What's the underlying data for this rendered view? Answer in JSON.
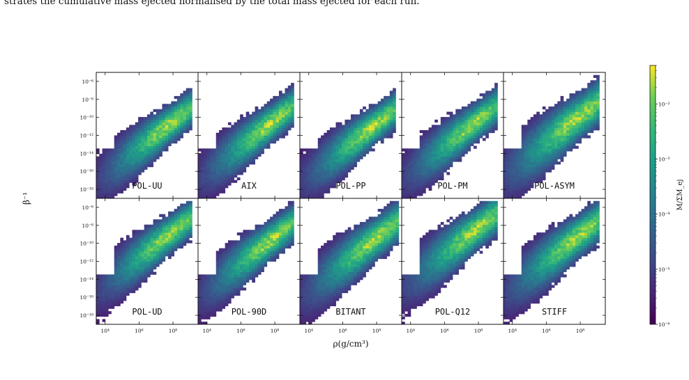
{
  "caption": "strates the cumulative mass ejected normalised by the total mass ejected for each run.",
  "chart_data": {
    "type": "heatmap",
    "layout": {
      "rows": 2,
      "cols": 5
    },
    "xlabel": "ρ(g/cm³)",
    "ylabel": "β⁻¹",
    "x_scale": "log",
    "y_scale": "log",
    "xlim": [
      3000,
      3000000000.0
    ],
    "ylim": [
      1e-19,
      1e-05
    ],
    "x_ticks": [
      {
        "value": 10000,
        "label": "10⁴"
      },
      {
        "value": 1000000,
        "label": "10⁶"
      },
      {
        "value": 100000000,
        "label": "10⁸"
      }
    ],
    "y_ticks": [
      {
        "value": 1e-06,
        "label": "10⁻⁶"
      },
      {
        "value": 1e-08,
        "label": "10⁻⁸"
      },
      {
        "value": 1e-10,
        "label": "10⁻¹⁰"
      },
      {
        "value": 1e-12,
        "label": "10⁻¹²"
      },
      {
        "value": 1e-14,
        "label": "10⁻¹⁴"
      },
      {
        "value": 1e-16,
        "label": "10⁻¹⁶"
      },
      {
        "value": 1e-18,
        "label": "10⁻¹⁸"
      }
    ],
    "colorbar": {
      "label": "M/ΣM_ej",
      "scale": "log",
      "range": [
        1e-06,
        0.05
      ],
      "colormap": "viridis",
      "ticks": [
        {
          "value": 0.01,
          "label": "10⁻²"
        },
        {
          "value": 0.001,
          "label": "10⁻³"
        },
        {
          "value": 0.0001,
          "label": "10⁻⁴"
        },
        {
          "value": 1e-05,
          "label": "10⁻⁵"
        },
        {
          "value": 1e-06,
          "label": "10⁻⁶"
        }
      ]
    },
    "panels": [
      {
        "name": "POL-UU",
        "peak": {
          "x": 7.8,
          "y": -10.8
        },
        "spread": 1.0
      },
      {
        "name": "AIX",
        "peak": {
          "x": 7.8,
          "y": -10.6
        },
        "spread": 1.0
      },
      {
        "name": "POL-PP",
        "peak": {
          "x": 7.8,
          "y": -11.0
        },
        "spread": 1.0
      },
      {
        "name": "POL-PM",
        "peak": {
          "x": 7.8,
          "y": -10.6
        },
        "spread": 1.0
      },
      {
        "name": "POL-ASYM",
        "peak": {
          "x": 7.9,
          "y": -10.0
        },
        "spread": 1.2
      },
      {
        "name": "POL-UD",
        "peak": {
          "x": 7.8,
          "y": -9.0
        },
        "spread": 1.0
      },
      {
        "name": "POL-90D",
        "peak": {
          "x": 7.8,
          "y": -9.6
        },
        "spread": 1.0
      },
      {
        "name": "BITANT",
        "peak": {
          "x": 8.0,
          "y": -9.4
        },
        "spread": 1.1
      },
      {
        "name": "POL-Q12",
        "peak": {
          "x": 7.9,
          "y": -8.4
        },
        "spread": 1.1
      },
      {
        "name": "STIFF",
        "peak": {
          "x": 7.9,
          "y": -9.2
        },
        "spread": 1.1
      }
    ]
  }
}
